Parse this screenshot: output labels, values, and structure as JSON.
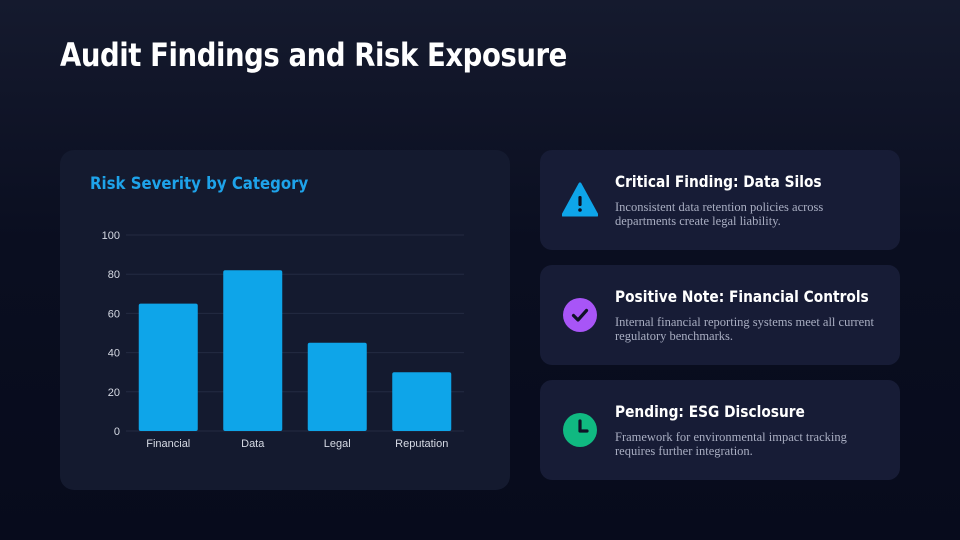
{
  "title": "Audit Findings and Risk Exposure",
  "chart_data": {
    "type": "bar",
    "title": "Risk Severity by Category",
    "categories": [
      "Financial",
      "Data",
      "Legal",
      "Reputation"
    ],
    "values": [
      65,
      82,
      45,
      30
    ],
    "ylim": [
      0,
      100
    ],
    "yticks": [
      0,
      20,
      40,
      60,
      80,
      100
    ],
    "xlabel": "",
    "ylabel": "",
    "grid": true,
    "bar_color": "#0ea5e9",
    "title_color": "#1ea3ea"
  },
  "cards": [
    {
      "heading": "Critical Finding: Data Silos",
      "description": "Inconsistent data retention policies across departments create legal liability.",
      "icon": "warning-triangle-icon",
      "color": "#0ea5e9"
    },
    {
      "heading": "Positive Note: Financial Controls",
      "description": "Internal financial reporting systems meet all current regulatory benchmarks.",
      "icon": "check-circle-icon",
      "color": "#a855f7"
    },
    {
      "heading": "Pending: ESG Disclosure",
      "description": "Framework for environmental impact tracking requires further integration.",
      "icon": "clock-icon",
      "color": "#10b981"
    }
  ]
}
